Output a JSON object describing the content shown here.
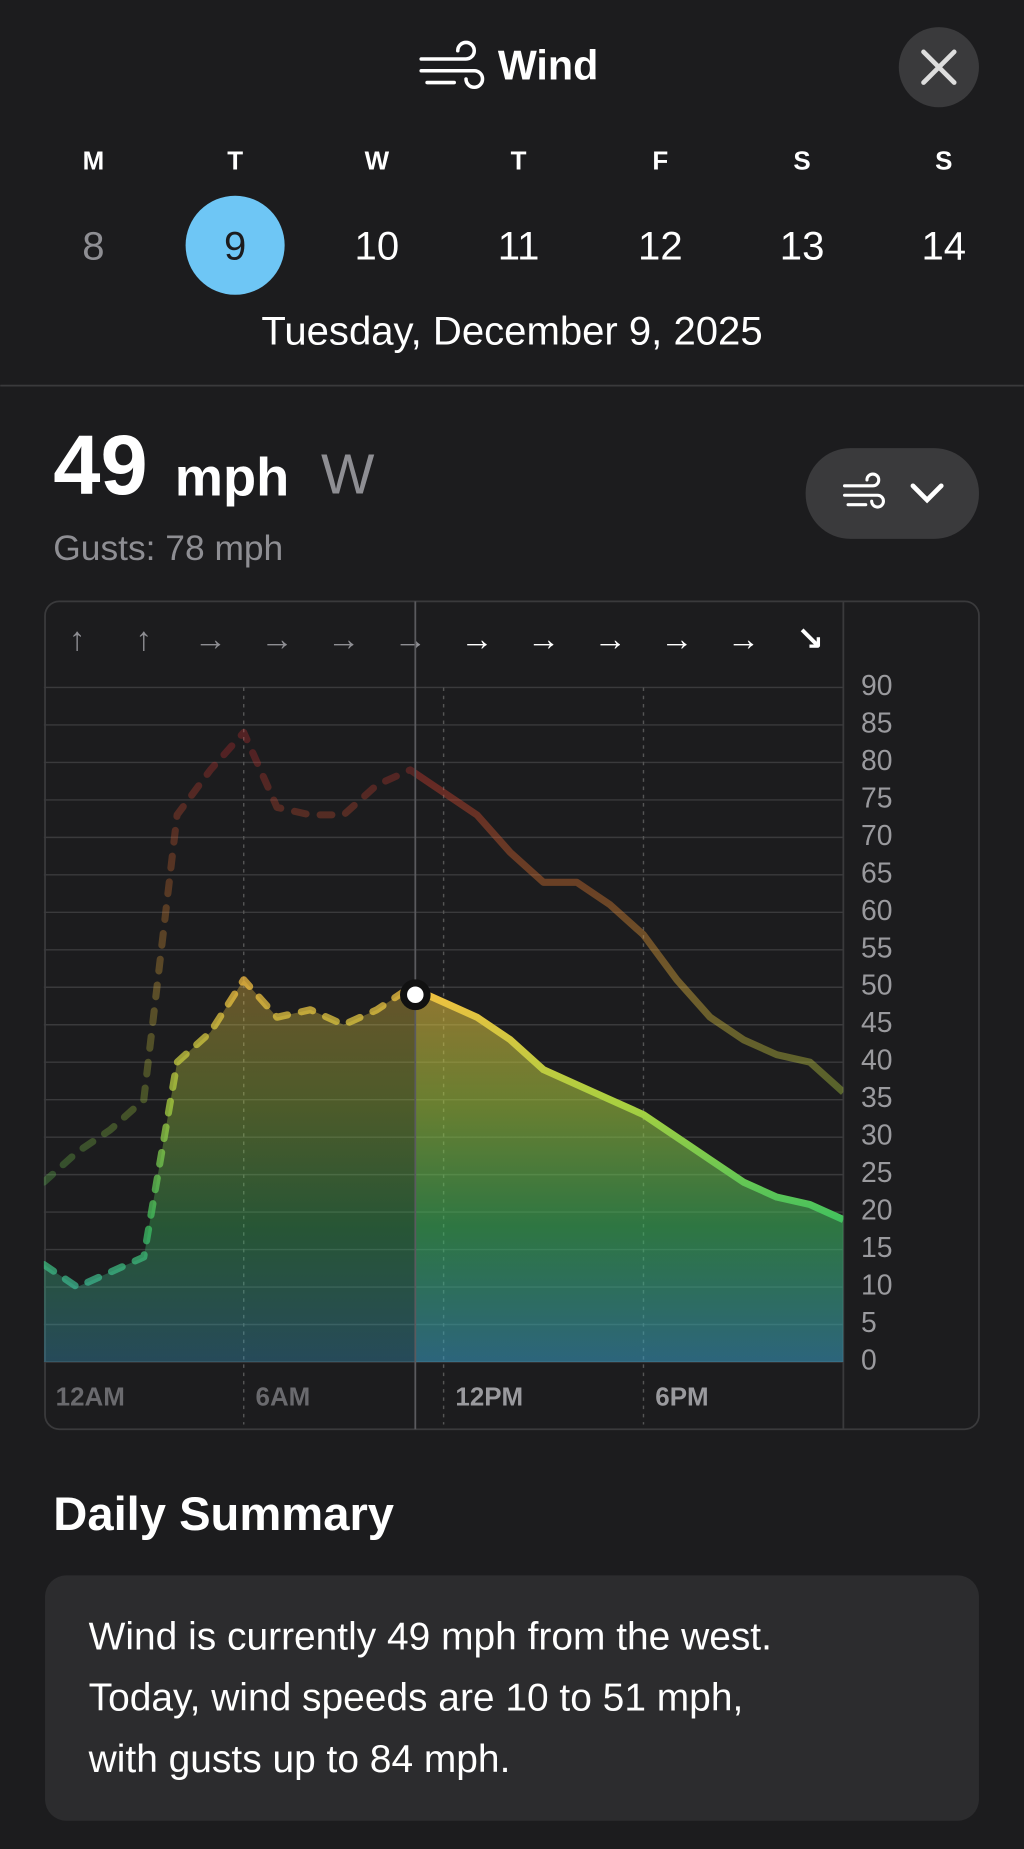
{
  "header": {
    "title": "Wind",
    "day_letters": [
      "M",
      "T",
      "W",
      "T",
      "F",
      "S",
      "S"
    ],
    "day_numbers": [
      8,
      9,
      10,
      11,
      12,
      13,
      14
    ],
    "selected_day": 1,
    "date": "Tuesday, December 9, 2025"
  },
  "current": {
    "speed": 49,
    "unit": "mph",
    "direction": "W",
    "gusts": "Gusts: 78 mph"
  },
  "chart_data": {
    "type": "line",
    "x": [
      0,
      1,
      2,
      3,
      4,
      5,
      6,
      7,
      8,
      9,
      10,
      11,
      12,
      13,
      14,
      15,
      16,
      17,
      18,
      19,
      20,
      21,
      22,
      23,
      24
    ],
    "series": [
      {
        "name": "Wind",
        "values": [
          13,
          10,
          12,
          14,
          40,
          44,
          51,
          46,
          47,
          45,
          47,
          50,
          48,
          46,
          43,
          39,
          37,
          35,
          33,
          30,
          27,
          24,
          22,
          21,
          19
        ]
      },
      {
        "name": "Gusts",
        "values": [
          24,
          28,
          31,
          35,
          73,
          79,
          84,
          74,
          73,
          73,
          77,
          79,
          76,
          73,
          68,
          64,
          64,
          61,
          57,
          51,
          46,
          43,
          41,
          40,
          36
        ]
      }
    ],
    "directions": [
      "↑",
      "↑",
      "→",
      "→",
      "→",
      "→",
      "→",
      "→",
      "→",
      "→",
      "→",
      "↘"
    ],
    "xlim": [
      0,
      24
    ],
    "ylim": [
      0,
      90
    ],
    "xticks": [
      {
        "value": 0,
        "label": "12AM"
      },
      {
        "value": 6,
        "label": "6AM"
      },
      {
        "value": 12,
        "label": "12PM"
      },
      {
        "value": 18,
        "label": "6PM"
      }
    ],
    "yticks": [
      0,
      5,
      10,
      15,
      20,
      25,
      30,
      35,
      40,
      45,
      50,
      55,
      60,
      65,
      70,
      75,
      80,
      85,
      90
    ],
    "grid": true
  },
  "summary": {
    "heading": "Daily Summary",
    "lines": [
      "Wind is currently 49 mph from the west.",
      "Today, wind speeds are 10 to 51 mph,",
      "with gusts up to 84 mph."
    ]
  }
}
